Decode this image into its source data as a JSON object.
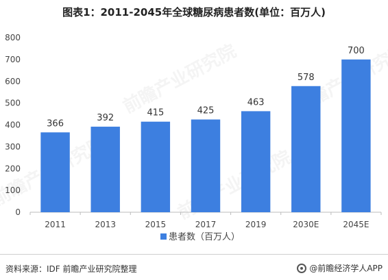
{
  "title": "图表1：2011-2045年全球糖尿病患者数(单位：百万人)",
  "chart_data": {
    "type": "bar",
    "categories": [
      "2011",
      "2013",
      "2015",
      "2017",
      "2019",
      "2030E",
      "2045E"
    ],
    "series": [
      {
        "name": "患者数（百万人）",
        "values": [
          366,
          392,
          415,
          425,
          463,
          578,
          700
        ]
      }
    ],
    "ylim": [
      0,
      800
    ],
    "yticks": [
      0,
      100,
      200,
      300,
      400,
      500,
      600,
      700,
      800
    ],
    "grid": false,
    "legend_position": "bottom",
    "bar_color": "#3d7fe0"
  },
  "footer": {
    "source": "资料来源：IDF 前瞻产业研究院整理",
    "brand": "@前瞻经济学人APP"
  },
  "watermark": "前瞻产业研究院"
}
